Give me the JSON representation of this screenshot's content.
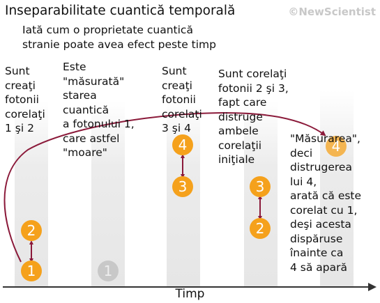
{
  "header": {
    "title": "Inseparabilitate cuantică temporală",
    "subtitle": "Iată cum o proprietate cuantică\nstranie poate avea efect peste timp",
    "brand": "©NewScientist"
  },
  "axis": {
    "label": "Timp"
  },
  "steps": [
    {
      "text": "Sunt\ncreaţi\nfotonii\ncorelaţi\n1 şi 2"
    },
    {
      "text": "Este\n\"măsurată\"\nstarea\ncuantică\na fotonului 1,\ncare  astfel\n\"moare\""
    },
    {
      "text": "Sunt\ncreaţi\nfotonii\ncorelaţi\n3 şi 4"
    },
    {
      "text": "Sunt corelaţi\nfotonii 2 şi 3,\nfapt care\ndistruge\nambele\ncorelaţii\niniţiale"
    },
    {
      "text": "\"Măsurarea\",\ndeci\ndistrugerea\nlui 4,\narată că este\ncorelat cu 1,\ndeşi acesta\ndispăruse\n înainte ca\n4 să apară"
    }
  ],
  "photons": {
    "p1": "1",
    "p2": "2",
    "p1_faded": "1",
    "p4": "4",
    "p3": "3",
    "p3b": "3",
    "p2b": "2",
    "p4_faded": "4"
  },
  "colors": {
    "photon": "#f5a11c",
    "photon_faded": "#c8c8c8",
    "link": "#8b1a3a",
    "column": "#ececec",
    "axis": "#333333"
  }
}
